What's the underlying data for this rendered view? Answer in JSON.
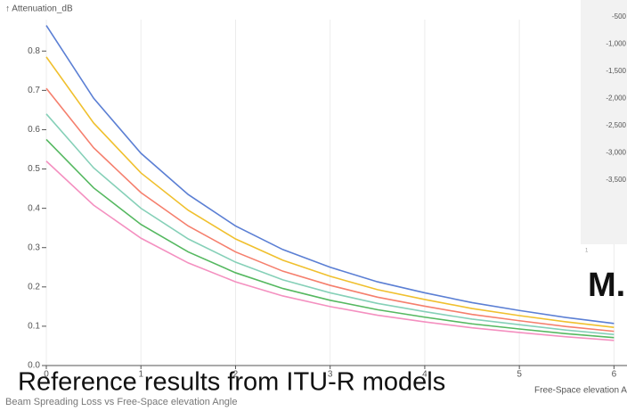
{
  "chart_data": {
    "type": "line",
    "title": "Beam Spreading Loss vs Free-Space elevation Angle",
    "x_label": "Free-Space elevation Angle →",
    "y_label": "↑ Attenuation_dB",
    "x": [
      0,
      0.5,
      1,
      1.5,
      2,
      2.5,
      3,
      3.5,
      4,
      4.5,
      5,
      5.5,
      6
    ],
    "series": [
      {
        "name": "blue",
        "color": "#5b7fd4",
        "values": [
          0.865,
          0.68,
          0.54,
          0.435,
          0.355,
          0.295,
          0.25,
          0.213,
          0.185,
          0.16,
          0.14,
          0.122,
          0.107
        ]
      },
      {
        "name": "yellow",
        "color": "#f0c02e",
        "values": [
          0.785,
          0.617,
          0.49,
          0.395,
          0.322,
          0.268,
          0.227,
          0.193,
          0.168,
          0.145,
          0.127,
          0.111,
          0.097
        ]
      },
      {
        "name": "red",
        "color": "#f57f6d",
        "values": [
          0.705,
          0.554,
          0.44,
          0.355,
          0.289,
          0.24,
          0.204,
          0.174,
          0.151,
          0.13,
          0.114,
          0.099,
          0.087
        ]
      },
      {
        "name": "teal",
        "color": "#86d0b8",
        "values": [
          0.64,
          0.503,
          0.4,
          0.322,
          0.263,
          0.218,
          0.185,
          0.158,
          0.137,
          0.118,
          0.104,
          0.09,
          0.079
        ]
      },
      {
        "name": "green",
        "color": "#55b860",
        "values": [
          0.575,
          0.452,
          0.359,
          0.289,
          0.236,
          0.196,
          0.166,
          0.142,
          0.123,
          0.106,
          0.093,
          0.081,
          0.071
        ]
      },
      {
        "name": "pink",
        "color": "#f490c0",
        "values": [
          0.52,
          0.408,
          0.324,
          0.261,
          0.213,
          0.177,
          0.15,
          0.128,
          0.111,
          0.096,
          0.084,
          0.073,
          0.064
        ]
      }
    ],
    "xlim": [
      0,
      6.1
    ],
    "xticks": [
      0,
      1,
      2,
      3,
      4,
      5,
      6
    ],
    "ylim": [
      0,
      0.88
    ],
    "yticks": [
      {
        "value": 0,
        "label": "0.0"
      },
      0.1,
      0.2,
      0.3,
      0.4,
      0.5,
      0.6,
      0.7,
      0.8
    ],
    "grid": true
  },
  "overlay_text": "Reference results from ITU-R models",
  "side_panel": {
    "labels": [
      "-500",
      "-1,000",
      "-1,500",
      "-2,000",
      "-2,500",
      "-3,000",
      "-3,500"
    ],
    "small_label": "1"
  },
  "banner": "M."
}
